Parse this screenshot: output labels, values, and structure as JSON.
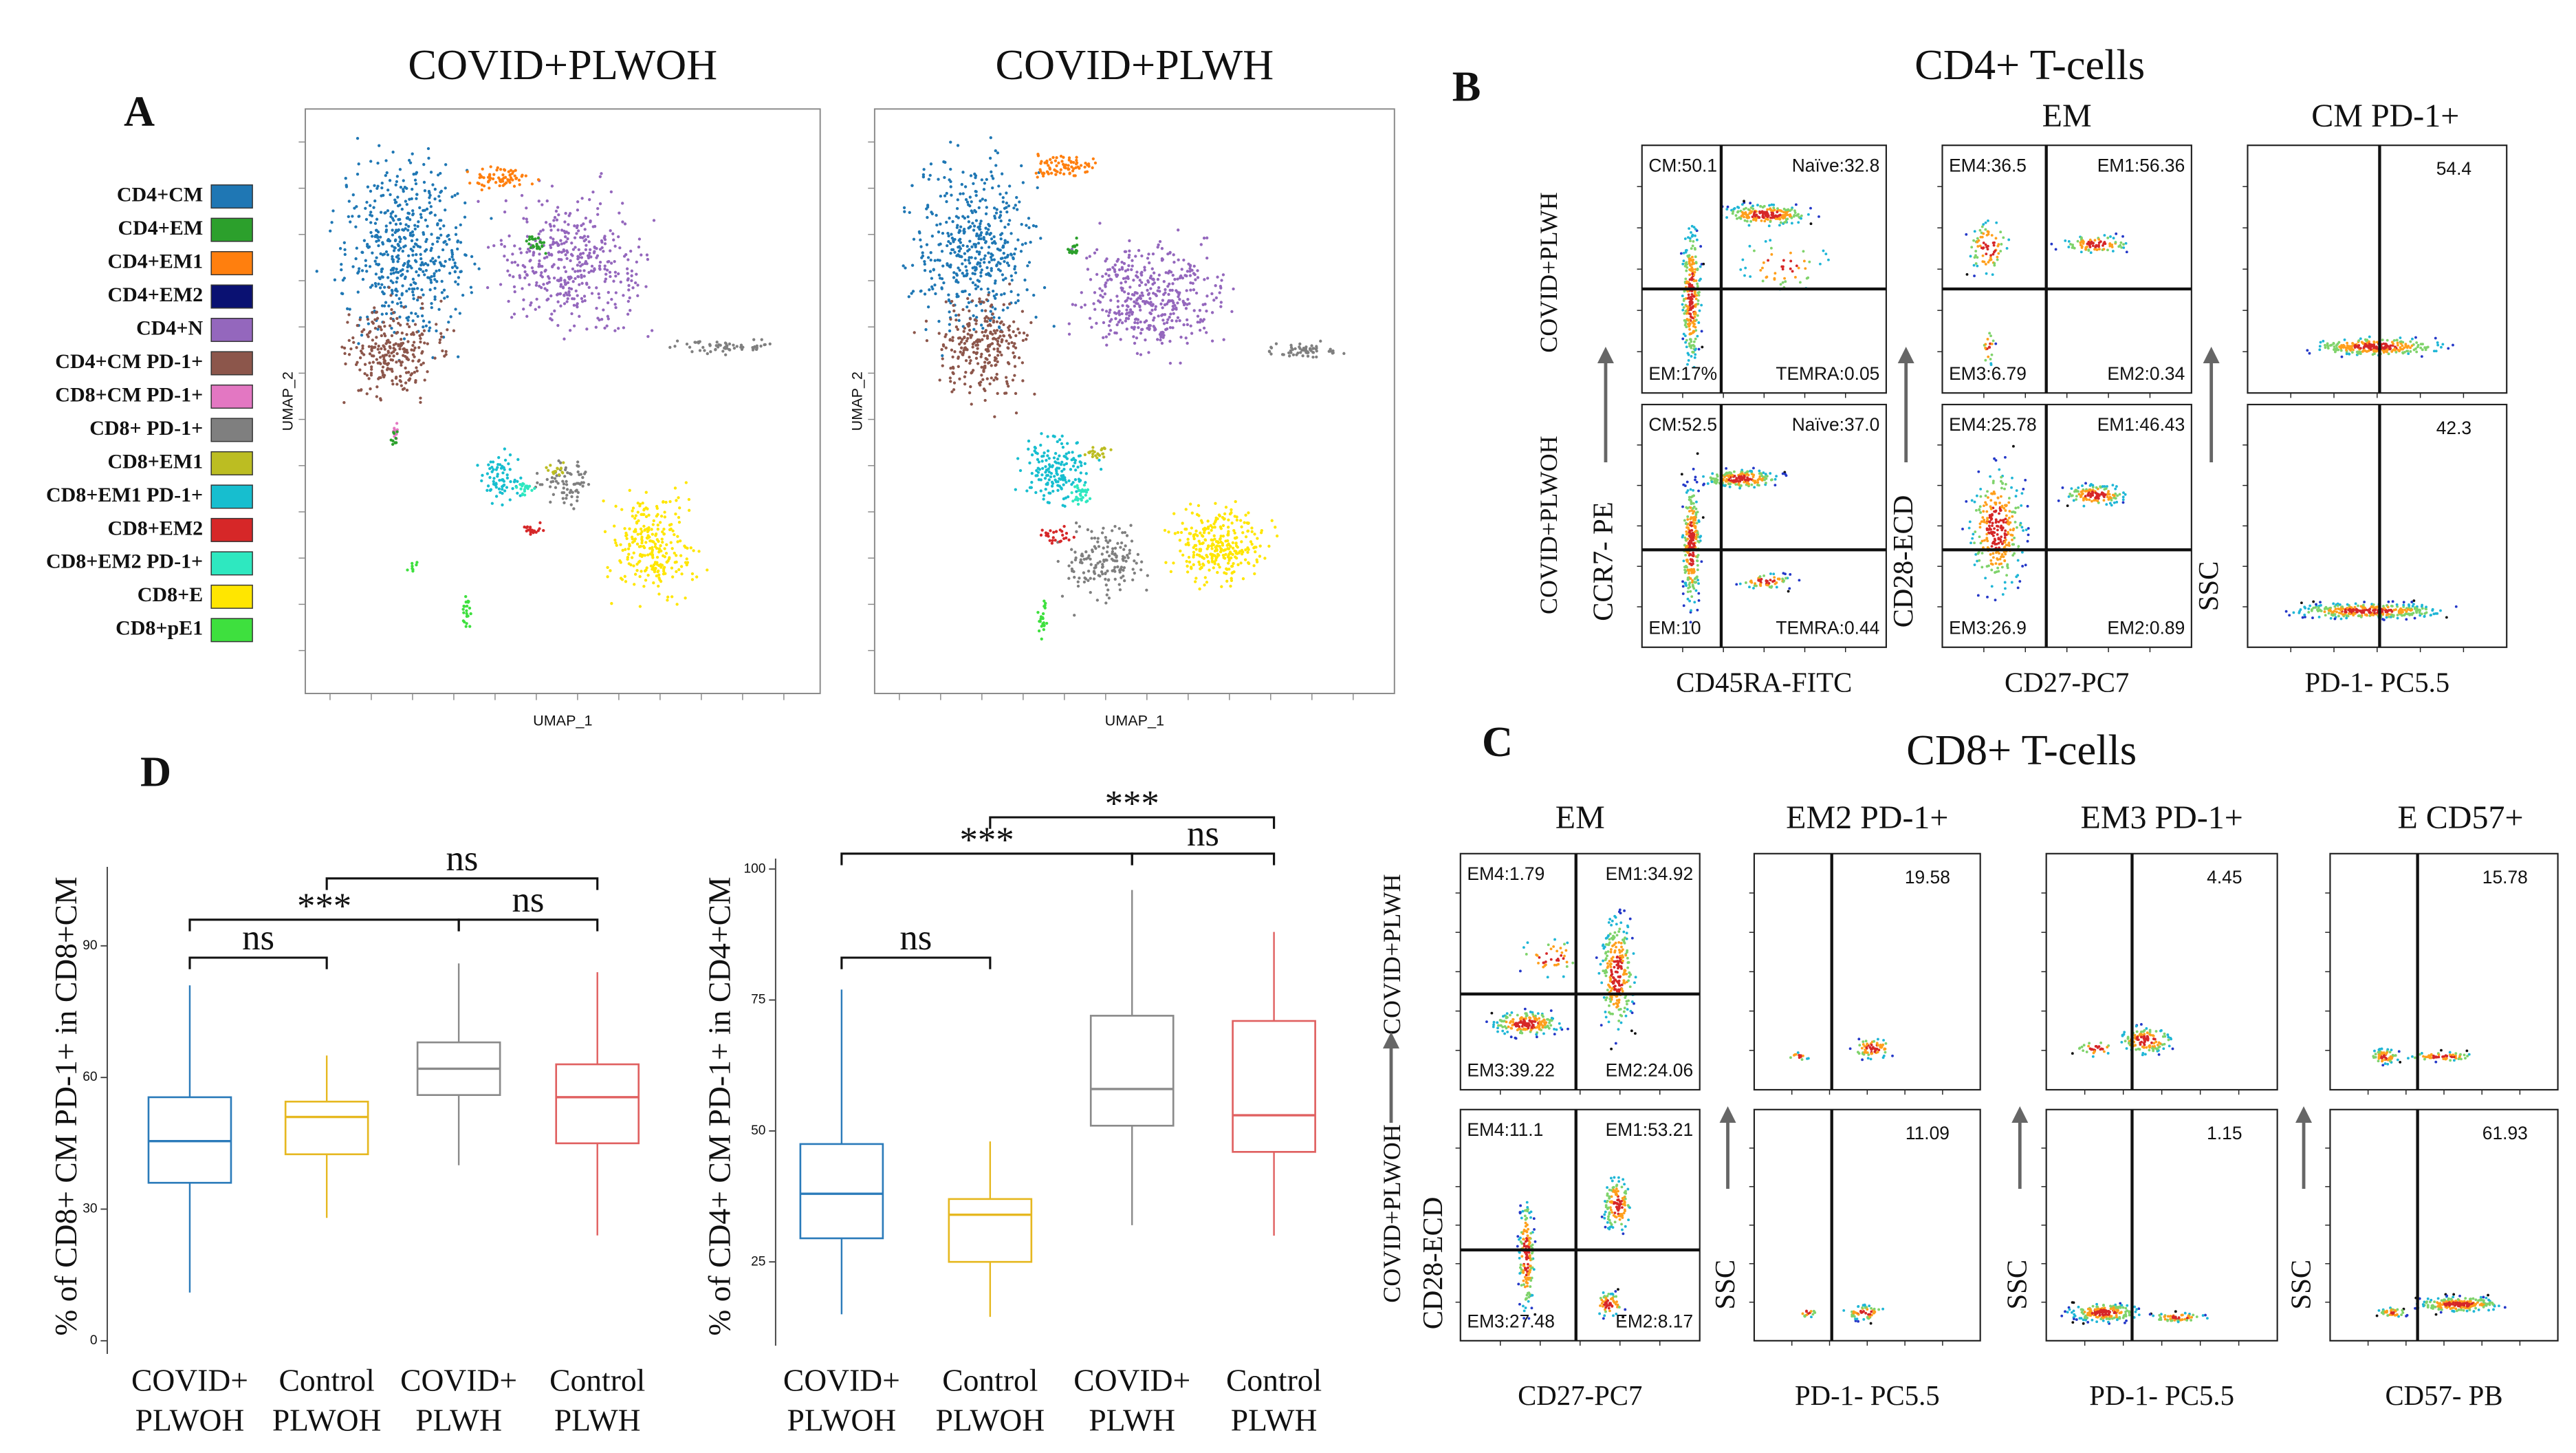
{
  "panel_a": {
    "letter": "A",
    "titles": [
      "COVID+PLWOH",
      "COVID+PLWH"
    ],
    "xlabel": "UMAP_1",
    "ylabel": "UMAP_2",
    "legend": [
      {
        "name": "CD4+CM",
        "color": "#1f77b4"
      },
      {
        "name": "CD4+EM",
        "color": "#2ca02c"
      },
      {
        "name": "CD4+EM1",
        "color": "#ff7f0e"
      },
      {
        "name": "CD4+EM2",
        "color": "#0a1172"
      },
      {
        "name": "CD4+N",
        "color": "#9467bd"
      },
      {
        "name": "CD4+CM PD-1+",
        "color": "#8c564b"
      },
      {
        "name": "CD8+CM PD-1+",
        "color": "#e377c2"
      },
      {
        "name": "CD8+ PD-1+",
        "color": "#7f7f7f"
      },
      {
        "name": "CD8+EM1",
        "color": "#bcbd22"
      },
      {
        "name": "CD8+EM1 PD-1+",
        "color": "#17becf"
      },
      {
        "name": "CD8+EM2",
        "color": "#d62728"
      },
      {
        "name": "CD8+EM2 PD-1+",
        "color": "#2ee8c0"
      },
      {
        "name": "CD8+E",
        "color": "#ffe600"
      },
      {
        "name": "CD8+pE1",
        "color": "#3ee03e"
      }
    ]
  },
  "panel_b": {
    "letter": "B",
    "title": "CD4+ T-cells",
    "row_labels": [
      "COVID+PLWH",
      "COVID+PLWOH"
    ],
    "columns": [
      {
        "ylabel": "CCR7- PE",
        "xlabel": "CD45RA-FITC",
        "gates": [
          [
            "CM:50.1",
            "Naïve:32.8",
            "EM:17%",
            "TEMRA:0.05"
          ],
          [
            "CM:52.5",
            "Naïve:37.0",
            "EM:10",
            "TEMRA:0.44"
          ]
        ]
      },
      {
        "title": "EM",
        "ylabel": "CD28-ECD",
        "xlabel": "CD27-PC7",
        "gates": [
          [
            "EM4:36.5",
            "EM1:56.36",
            "EM3:6.79",
            "EM2:0.34"
          ],
          [
            "EM4:25.78",
            "EM1:46.43",
            "EM3:26.9",
            "EM2:0.89"
          ]
        ]
      },
      {
        "title": "CM PD-1+",
        "ylabel": "SSC",
        "xlabel": "PD-1- PC5.5",
        "gates": [
          [
            54.4
          ],
          [
            42.3
          ]
        ]
      }
    ]
  },
  "panel_c": {
    "letter": "C",
    "title": "CD8+ T-cells",
    "row_labels": [
      "COVID+PLWH",
      "COVID+PLWOH"
    ],
    "columns": [
      {
        "title": "EM",
        "ylabel": "CD28-ECD",
        "xlabel": "CD27-PC7",
        "gates": [
          [
            "EM4:1.79",
            "EM1:34.92",
            "EM3:39.22",
            "EM2:24.06"
          ],
          [
            "EM4:11.1",
            "EM1:53.21",
            "EM3:27.48",
            "EM2:8.17"
          ]
        ]
      },
      {
        "title": "EM2 PD-1+",
        "ylabel": "SSC",
        "xlabel": "PD-1- PC5.5",
        "gates": [
          [
            19.58
          ],
          [
            11.09
          ]
        ]
      },
      {
        "title": "EM3 PD-1+",
        "ylabel": "SSC",
        "xlabel": "PD-1- PC5.5",
        "gates": [
          [
            4.45
          ],
          [
            1.15
          ]
        ]
      },
      {
        "title": "E CD57+",
        "ylabel": "SSC",
        "xlabel": "CD57- PB",
        "gates": [
          [
            15.78
          ],
          [
            61.93
          ]
        ]
      }
    ]
  },
  "panel_d": {
    "letter": "D",
    "charts": [
      {
        "type": "box",
        "ylabel": "% of CD8+ CM PD-1+ in CD8+CM",
        "categories": [
          [
            "COVID+",
            "PLWOH"
          ],
          [
            "Control",
            "PLWOH"
          ],
          [
            "COVID+",
            "PLWH"
          ],
          [
            "Control",
            "PLWH"
          ]
        ],
        "colors": [
          "#2b7bba",
          "#e6b820",
          "#8a8a8a",
          "#e06060"
        ],
        "boxes": [
          {
            "low": 11,
            "q1": 36,
            "median": 45.5,
            "q3": 55.5,
            "high": 81
          },
          {
            "low": 28,
            "q1": 42.5,
            "median": 51,
            "q3": 54.5,
            "high": 65
          },
          {
            "low": 40,
            "q1": 56,
            "median": 62,
            "q3": 68,
            "high": 86
          },
          {
            "low": 24,
            "q1": 45,
            "median": 55.5,
            "q3": 63,
            "high": 84
          }
        ],
        "ylim": [
          -3,
          108
        ],
        "yticks": [
          0,
          30,
          60,
          90
        ],
        "significance": [
          "ns",
          "***",
          "ns",
          "ns"
        ]
      },
      {
        "type": "box",
        "ylabel": "% of CD4+ CM PD-1+ in CD4+CM",
        "categories": [
          [
            "COVID+",
            "PLWOH"
          ],
          [
            "Control",
            "PLWOH"
          ],
          [
            "COVID+",
            "PLWH"
          ],
          [
            "Control",
            "PLWH"
          ]
        ],
        "colors": [
          "#2b7bba",
          "#e6b820",
          "#8a8a8a",
          "#e06060"
        ],
        "boxes": [
          {
            "low": 15,
            "q1": 29.5,
            "median": 38,
            "q3": 47.5,
            "high": 77
          },
          {
            "low": 14.5,
            "q1": 25,
            "median": 34,
            "q3": 37,
            "high": 48
          },
          {
            "low": 32,
            "q1": 51,
            "median": 58,
            "q3": 72,
            "high": 96
          },
          {
            "low": 30,
            "q1": 46,
            "median": 53,
            "q3": 71,
            "high": 88
          }
        ],
        "ylim": [
          9,
          102
        ],
        "yticks": [
          25,
          50,
          75,
          100
        ],
        "significance": [
          "ns",
          "***",
          "ns",
          "***"
        ]
      }
    ]
  }
}
